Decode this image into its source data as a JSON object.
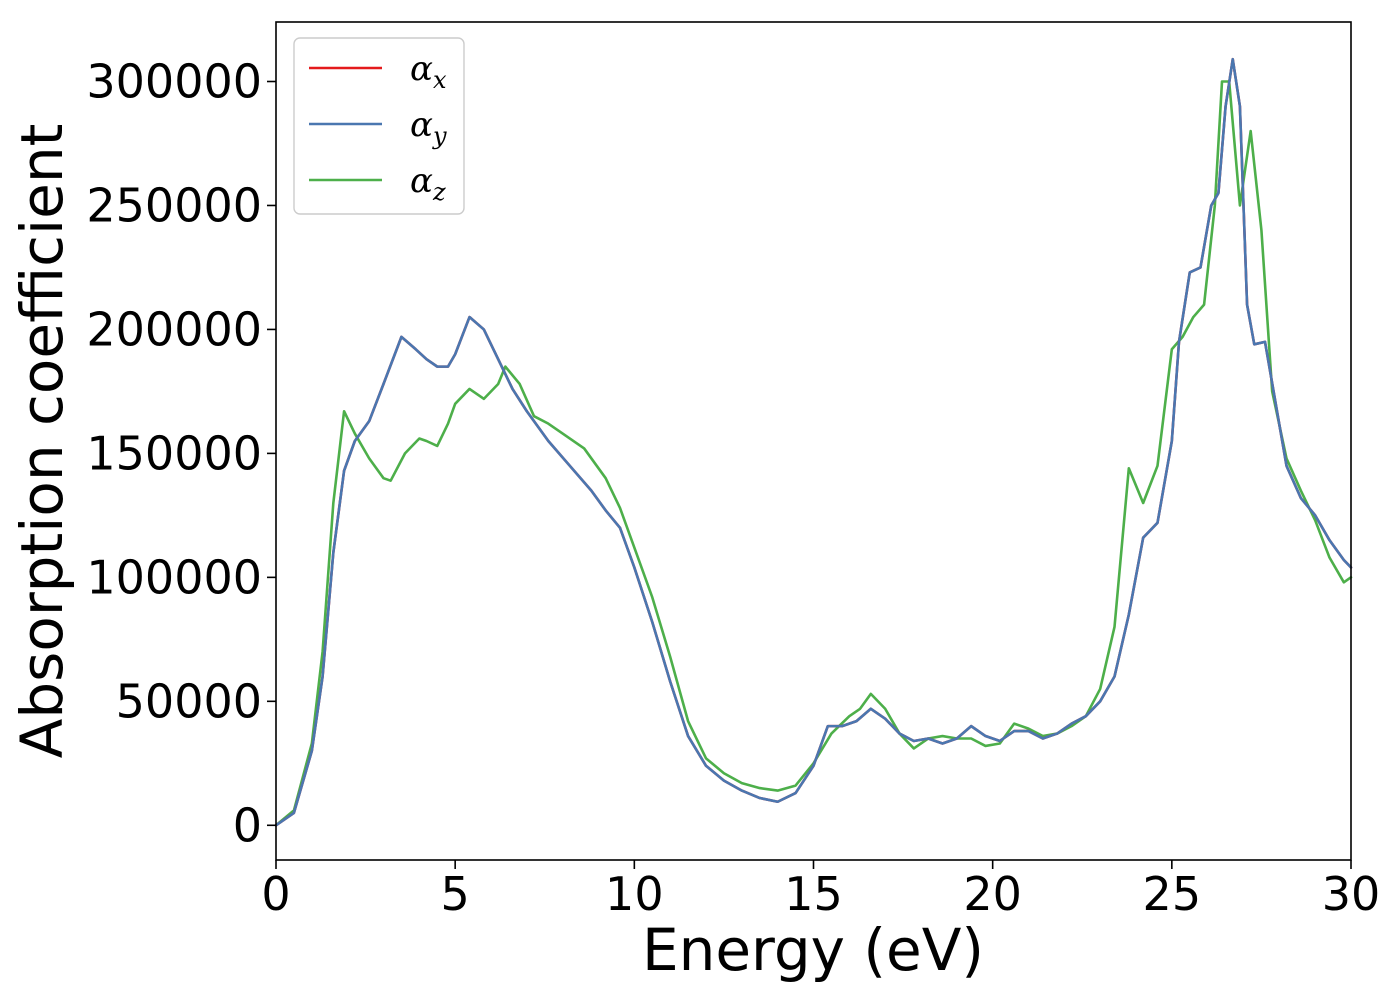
{
  "chart_data": {
    "type": "line",
    "title": "",
    "xlabel": "Energy (eV)",
    "ylabel": "Absorption coefficient",
    "xlim": [
      0,
      30
    ],
    "ylim": [
      -14000,
      324000
    ],
    "x_ticks": [
      0,
      5,
      10,
      15,
      20,
      25,
      30
    ],
    "y_ticks": [
      0,
      50000,
      100000,
      150000,
      200000,
      250000,
      300000
    ],
    "grid": false,
    "legend_position": "top-left",
    "series": [
      {
        "name": "α_x",
        "legend_base": "α",
        "legend_sub": "x",
        "color": "#e41a1c",
        "x": [
          0,
          0.5,
          1.0,
          1.3,
          1.6,
          1.9,
          2.2,
          2.6,
          3.0,
          3.5,
          3.9,
          4.2,
          4.5,
          4.8,
          5.0,
          5.4,
          5.8,
          6.2,
          6.6,
          7.0,
          7.6,
          8.2,
          8.8,
          9.2,
          9.6,
          10.0,
          10.5,
          11.0,
          11.5,
          12.0,
          12.5,
          13.0,
          13.5,
          14.0,
          14.5,
          15.0,
          15.4,
          15.8,
          16.2,
          16.6,
          17.0,
          17.4,
          17.8,
          18.2,
          18.6,
          19.0,
          19.4,
          19.8,
          20.2,
          20.6,
          21.0,
          21.4,
          21.8,
          22.2,
          22.6,
          23.0,
          23.4,
          23.8,
          24.2,
          24.6,
          25.0,
          25.2,
          25.5,
          25.8,
          26.1,
          26.3,
          26.5,
          26.7,
          26.9,
          27.1,
          27.3,
          27.6,
          27.9,
          28.2,
          28.6,
          29.0,
          29.4,
          29.8,
          30.0
        ],
        "values": [
          0,
          5000,
          30000,
          60000,
          110000,
          143000,
          155000,
          163000,
          178000,
          197000,
          192000,
          188000,
          185000,
          185000,
          190000,
          205000,
          200000,
          188000,
          176000,
          167000,
          155000,
          145000,
          135000,
          127000,
          120000,
          104000,
          82000,
          58000,
          36000,
          24000,
          18000,
          14000,
          11000,
          9500,
          13000,
          24000,
          40000,
          40000,
          42000,
          47000,
          43000,
          37000,
          34000,
          35000,
          33000,
          35000,
          40000,
          36000,
          34000,
          38000,
          38000,
          35000,
          37000,
          41000,
          44000,
          50000,
          60000,
          85000,
          116000,
          122000,
          155000,
          195000,
          223000,
          225000,
          250000,
          255000,
          290000,
          309000,
          290000,
          210000,
          194000,
          195000,
          170000,
          145000,
          132000,
          125000,
          115000,
          107000,
          104000
        ]
      },
      {
        "name": "α_y",
        "legend_base": "α",
        "legend_sub": "y",
        "color": "#4a77b0",
        "x": [
          0,
          0.5,
          1.0,
          1.3,
          1.6,
          1.9,
          2.2,
          2.6,
          3.0,
          3.5,
          3.9,
          4.2,
          4.5,
          4.8,
          5.0,
          5.4,
          5.8,
          6.2,
          6.6,
          7.0,
          7.6,
          8.2,
          8.8,
          9.2,
          9.6,
          10.0,
          10.5,
          11.0,
          11.5,
          12.0,
          12.5,
          13.0,
          13.5,
          14.0,
          14.5,
          15.0,
          15.4,
          15.8,
          16.2,
          16.6,
          17.0,
          17.4,
          17.8,
          18.2,
          18.6,
          19.0,
          19.4,
          19.8,
          20.2,
          20.6,
          21.0,
          21.4,
          21.8,
          22.2,
          22.6,
          23.0,
          23.4,
          23.8,
          24.2,
          24.6,
          25.0,
          25.2,
          25.5,
          25.8,
          26.1,
          26.3,
          26.5,
          26.7,
          26.9,
          27.1,
          27.3,
          27.6,
          27.9,
          28.2,
          28.6,
          29.0,
          29.4,
          29.8,
          30.0
        ],
        "values": [
          0,
          5000,
          30000,
          60000,
          110000,
          143000,
          155000,
          163000,
          178000,
          197000,
          192000,
          188000,
          185000,
          185000,
          190000,
          205000,
          200000,
          188000,
          176000,
          167000,
          155000,
          145000,
          135000,
          127000,
          120000,
          104000,
          82000,
          58000,
          36000,
          24000,
          18000,
          14000,
          11000,
          9500,
          13000,
          24000,
          40000,
          40000,
          42000,
          47000,
          43000,
          37000,
          34000,
          35000,
          33000,
          35000,
          40000,
          36000,
          34000,
          38000,
          38000,
          35000,
          37000,
          41000,
          44000,
          50000,
          60000,
          85000,
          116000,
          122000,
          155000,
          195000,
          223000,
          225000,
          250000,
          255000,
          290000,
          309000,
          290000,
          210000,
          194000,
          195000,
          170000,
          145000,
          132000,
          125000,
          115000,
          107000,
          104000
        ]
      },
      {
        "name": "α_z",
        "legend_base": "α",
        "legend_sub": "z",
        "color": "#4daf4a",
        "x": [
          0,
          0.5,
          1.0,
          1.3,
          1.6,
          1.9,
          2.2,
          2.6,
          3.0,
          3.2,
          3.6,
          4.0,
          4.2,
          4.5,
          4.8,
          5.0,
          5.4,
          5.8,
          6.2,
          6.4,
          6.8,
          7.2,
          7.6,
          8.0,
          8.6,
          9.2,
          9.6,
          10.0,
          10.5,
          11.0,
          11.5,
          12.0,
          12.5,
          13.0,
          13.5,
          14.0,
          14.5,
          15.0,
          15.5,
          16.0,
          16.3,
          16.6,
          17.0,
          17.4,
          17.8,
          18.2,
          18.6,
          19.0,
          19.4,
          19.8,
          20.2,
          20.6,
          21.0,
          21.4,
          21.8,
          22.2,
          22.6,
          23.0,
          23.4,
          23.8,
          24.2,
          24.6,
          25.0,
          25.3,
          25.6,
          25.9,
          26.2,
          26.4,
          26.6,
          26.9,
          27.2,
          27.5,
          27.8,
          28.2,
          28.6,
          29.0,
          29.4,
          29.8,
          30.0
        ],
        "values": [
          0,
          6000,
          33000,
          70000,
          130000,
          167000,
          158000,
          148000,
          140000,
          139000,
          150000,
          156000,
          155000,
          153000,
          162000,
          170000,
          176000,
          172000,
          178000,
          185000,
          178000,
          165000,
          162000,
          158000,
          152000,
          140000,
          128000,
          112000,
          92000,
          68000,
          42000,
          27000,
          21000,
          17000,
          15000,
          14000,
          16000,
          25000,
          37000,
          44000,
          47000,
          53000,
          47000,
          37000,
          31000,
          35000,
          36000,
          35000,
          35000,
          32000,
          33000,
          41000,
          39000,
          36000,
          37000,
          40000,
          44000,
          55000,
          80000,
          144000,
          130000,
          145000,
          192000,
          197000,
          205000,
          210000,
          250000,
          300000,
          300000,
          250000,
          280000,
          240000,
          175000,
          148000,
          135000,
          123000,
          108000,
          98000,
          100000
        ]
      }
    ]
  }
}
